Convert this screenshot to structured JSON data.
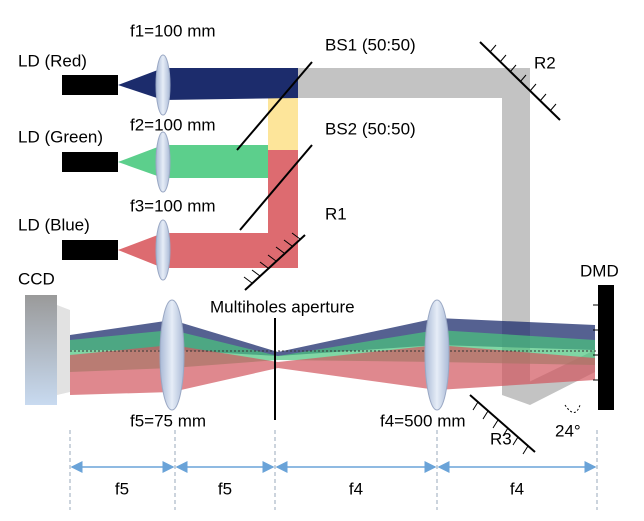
{
  "sources": [
    "LD (Red)",
    "LD (Green)",
    "LD (Blue)"
  ],
  "lenses": [
    "f1=100 mm",
    "f2=100 mm",
    "f3=100 mm",
    "f5=75 mm",
    "f4=500 mm"
  ],
  "beam_splitters": [
    "BS1 (50:50)",
    "BS2 (50:50)"
  ],
  "mirrors": [
    "R1",
    "R2",
    "R3"
  ],
  "detector": "CCD",
  "modulator": "DMD",
  "aperture": "Multiholes aperture",
  "angle": "24°",
  "distances": [
    "f5",
    "f5",
    "f4",
    "f4"
  ]
}
